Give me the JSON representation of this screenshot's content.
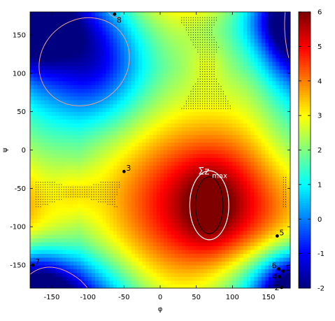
{
  "chart_data": {
    "type": "heatmap",
    "title": "",
    "xlabel": "φ",
    "ylabel": "ψ",
    "xlim": [
      -180,
      180
    ],
    "ylim": [
      -180,
      180
    ],
    "x_ticks": [
      -150,
      -100,
      -50,
      0,
      50,
      100,
      150
    ],
    "y_ticks": [
      150,
      100,
      50,
      0,
      -50,
      -100,
      -150
    ],
    "x_tick_labels": [
      "-150",
      "-100",
      "-50",
      "0",
      "50",
      "100",
      "150"
    ],
    "y_tick_labels": [
      "150",
      "100",
      "50",
      "0",
      "-50",
      "-100",
      "-150"
    ],
    "colorbar": {
      "min": -2,
      "max": 6,
      "ticks": [
        6,
        5,
        4,
        3,
        2,
        1,
        0,
        -1,
        -2
      ],
      "tick_labels": [
        "6",
        "5",
        "4",
        "3",
        "2",
        "1",
        "0",
        "-1",
        "-2"
      ],
      "colormap": "jet"
    },
    "surface": {
      "base": 2.2,
      "lobes": [
        {
          "phi": 68,
          "psi": -72,
          "amp": 3.6,
          "sphi": 95,
          "spsi": 75
        },
        {
          "phi": 68,
          "psi": -72,
          "amp": 1.0,
          "sphi": 25,
          "spsi": 35
        },
        {
          "phi": -100,
          "psi": 120,
          "amp": -3.6,
          "sphi": 55,
          "spsi": 60
        },
        {
          "phi": 150,
          "psi": -180,
          "amp": -2.0,
          "sphi": 60,
          "spsi": 40
        },
        {
          "phi": -160,
          "psi": -180,
          "amp": -2.0,
          "sphi": 45,
          "spsi": 35
        },
        {
          "phi": 180,
          "psi": 150,
          "amp": -2.2,
          "sphi": 30,
          "spsi": 50
        },
        {
          "phi": -180,
          "psi": 0,
          "amp": -0.8,
          "sphi": 40,
          "spsi": 50
        }
      ],
      "channels": [
        {
          "phi_center": 65,
          "psi_center": 110,
          "half_width": 45,
          "sphi": 18,
          "amp": 0.6
        },
        {
          "phi_center": -115,
          "psi_center": -55,
          "half_width": 45,
          "sphi": 18,
          "amp": 0.6
        }
      ]
    },
    "points": [
      {
        "label": "1",
        "phi": 170,
        "psi": -158
      },
      {
        "label": "2",
        "phi": 168,
        "psi": -179
      },
      {
        "label": "3",
        "phi": -50,
        "psi": -28
      },
      {
        "label": "4",
        "phi": 165,
        "psi": -165
      },
      {
        "label": "5",
        "phi": 162,
        "psi": -112
      },
      {
        "label": "6",
        "phi": 164,
        "psi": -155
      },
      {
        "label": "7",
        "phi": -176,
        "psi": -150
      },
      {
        "label": "8",
        "phi": -63,
        "psi": 177
      }
    ],
    "annotation": {
      "text_main": "Σz",
      "text_sub": "max",
      "phi": 68,
      "psi": -30,
      "color": "#ffffff"
    },
    "region_max": {
      "phi": 68,
      "psi": -72,
      "rphi_outer": 27,
      "rpsi_outer": 45,
      "rphi_inner": 19,
      "rpsi_inner": 37
    },
    "colors": {
      "contour": "#e8a090",
      "dots": "#000000",
      "point": "#000000",
      "annotation": "#ffffff"
    }
  }
}
